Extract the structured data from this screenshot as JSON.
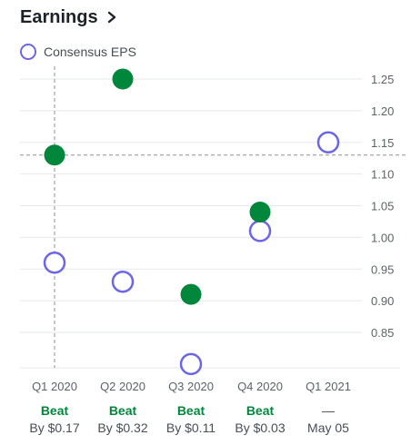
{
  "header": {
    "title": "Earnings",
    "chevron_icon": "chevron-right-icon"
  },
  "legend": {
    "label": "Consensus EPS",
    "color": "#6b66e6"
  },
  "colors": {
    "actual": "#00873c",
    "estimate": "#6b66e6",
    "grid": "#e6e8ea",
    "crosshair": "#8c9196"
  },
  "chart_data": {
    "type": "scatter",
    "categories": [
      "Q1 2020",
      "Q2 2020",
      "Q3 2020",
      "Q4 2020",
      "Q1 2021"
    ],
    "series": [
      {
        "name": "Consensus EPS",
        "values": [
          0.96,
          0.93,
          0.8,
          1.01,
          1.15
        ]
      },
      {
        "values": [
          1.13,
          1.25,
          0.91,
          1.04,
          null
        ]
      }
    ],
    "y_ticks": [
      "1.25",
      "1.20",
      "1.15",
      "1.10",
      "1.05",
      "1.00",
      "0.95",
      "0.90",
      "0.85"
    ],
    "ylim": [
      0.79,
      1.27
    ],
    "grid": true,
    "legend_position": "top-left",
    "crosshair": {
      "category": "Q1 2020",
      "value": 1.13
    },
    "results": [
      {
        "status": "Beat",
        "detail": "By $0.17"
      },
      {
        "status": "Beat",
        "detail": "By $0.32"
      },
      {
        "status": "Beat",
        "detail": "By $0.11"
      },
      {
        "status": "Beat",
        "detail": "By $0.03"
      },
      {
        "status": "—",
        "detail": "May 05"
      }
    ]
  }
}
